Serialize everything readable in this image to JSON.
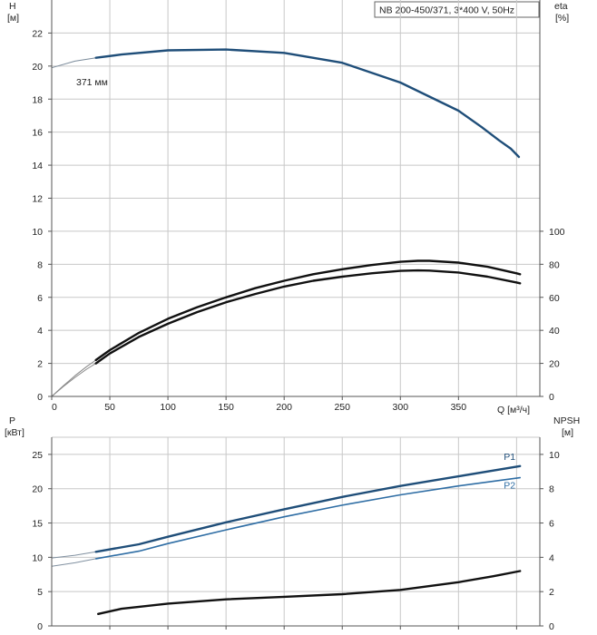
{
  "chart_data": [
    {
      "type": "line",
      "title": "NB 200-450/371, 3*400 V, 50Hz",
      "ylabel_left": [
        "H",
        "[м]"
      ],
      "ylabel_right": [
        "eta",
        "[%]"
      ],
      "xlabel": "Q [м³/ч]",
      "xlim": [
        0,
        420
      ],
      "x_ticks": [
        0,
        50,
        100,
        150,
        200,
        250,
        300,
        350
      ],
      "ylim_left": [
        0,
        24
      ],
      "y_ticks_left": [
        0,
        2,
        4,
        6,
        8,
        10,
        12,
        14,
        16,
        18,
        20,
        22
      ],
      "ylim_right": [
        0,
        240
      ],
      "y_ticks_right": [
        0,
        20,
        40,
        60,
        80,
        100
      ],
      "grid": true,
      "annotations": [
        {
          "text": "371 мм"
        }
      ],
      "series": [
        {
          "axis": "left",
          "role": "head-extension",
          "color": "#7a8a9a",
          "x": [
            0,
            20,
            38
          ],
          "y": [
            19.9,
            20.3,
            20.5
          ]
        },
        {
          "axis": "left",
          "role": "head",
          "color": "#1f4e79",
          "x": [
            38,
            60,
            100,
            150,
            200,
            250,
            300,
            350,
            370,
            385,
            395,
            402
          ],
          "y": [
            20.5,
            20.7,
            20.95,
            21.0,
            20.8,
            20.2,
            19.0,
            17.3,
            16.3,
            15.5,
            15.0,
            14.5
          ]
        },
        {
          "axis": "right",
          "role": "eta-extension",
          "color": "#888888",
          "x": [
            0,
            10,
            20,
            30,
            38
          ],
          "y": [
            0,
            6,
            11.5,
            16.5,
            20
          ]
        },
        {
          "axis": "right",
          "role": "eta-extension",
          "color": "#888888",
          "x": [
            0,
            10,
            20,
            30,
            38
          ],
          "y": [
            0,
            6.5,
            12.5,
            18,
            22
          ]
        },
        {
          "axis": "right",
          "role": "eta",
          "color": "#111111",
          "x": [
            38,
            50,
            75,
            100,
            125,
            150,
            175,
            200,
            225,
            250,
            275,
            300,
            315,
            325,
            350,
            375,
            400,
            403
          ],
          "y": [
            20,
            26,
            36,
            44,
            51,
            57,
            62,
            66.5,
            70,
            72.5,
            74.5,
            76,
            76.3,
            76.2,
            75,
            72.5,
            69,
            68.5
          ]
        },
        {
          "axis": "right",
          "role": "eta",
          "color": "#111111",
          "x": [
            38,
            50,
            75,
            100,
            125,
            150,
            175,
            200,
            225,
            250,
            275,
            300,
            315,
            325,
            350,
            375,
            400,
            403
          ],
          "y": [
            22,
            28,
            38.5,
            47,
            54,
            60,
            65.5,
            70,
            74,
            77,
            79.5,
            81.5,
            82.1,
            82.1,
            81,
            78.5,
            74.5,
            74
          ]
        }
      ]
    },
    {
      "type": "line",
      "ylabel_left": [
        "P",
        "[кВт]"
      ],
      "ylabel_right": [
        "NPSH",
        "[м]"
      ],
      "xlim": [
        0,
        420
      ],
      "ylim_left": [
        0,
        27.5
      ],
      "y_ticks_left": [
        0,
        5,
        10,
        15,
        20,
        25
      ],
      "ylim_right": [
        0,
        11
      ],
      "y_ticks_right": [
        0,
        2,
        4,
        6,
        8,
        10
      ],
      "grid": true,
      "series": [
        {
          "axis": "left",
          "role": "P1-extension",
          "color": "#8090a0",
          "x": [
            0,
            20,
            38
          ],
          "y": [
            9.9,
            10.3,
            10.8
          ]
        },
        {
          "axis": "left",
          "role": "P2-extension",
          "color": "#8090a0",
          "x": [
            0,
            20,
            38
          ],
          "y": [
            8.7,
            9.2,
            9.8
          ]
        },
        {
          "axis": "left",
          "name": "P1",
          "color": "#1f4e79",
          "x": [
            38,
            75,
            100,
            150,
            200,
            250,
            300,
            350,
            403
          ],
          "y": [
            10.8,
            11.9,
            13.0,
            15.1,
            17.0,
            18.8,
            20.4,
            21.8,
            23.3
          ]
        },
        {
          "axis": "left",
          "name": "P2",
          "color": "#2e6da4",
          "x": [
            38,
            75,
            100,
            150,
            200,
            250,
            300,
            350,
            403
          ],
          "y": [
            9.8,
            10.9,
            12.0,
            14.0,
            15.9,
            17.6,
            19.1,
            20.4,
            21.6
          ]
        },
        {
          "axis": "right",
          "role": "NPSH",
          "color": "#111111",
          "x": [
            40,
            60,
            100,
            150,
            200,
            250,
            300,
            350,
            380,
            403
          ],
          "y": [
            0.7,
            1.0,
            1.3,
            1.55,
            1.7,
            1.85,
            2.1,
            2.55,
            2.9,
            3.2
          ]
        }
      ]
    }
  ]
}
